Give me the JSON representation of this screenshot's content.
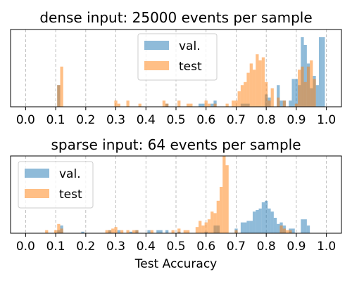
{
  "chart_data": [
    {
      "type": "histogram",
      "title": "dense input: 25000 events per sample",
      "xlabel": "",
      "ylabel": "",
      "xlim": [
        -0.05,
        1.05
      ],
      "ylim": [
        0,
        1.0
      ],
      "xticks": [
        "0.0",
        "0.1",
        "0.2",
        "0.3",
        "0.4",
        "0.5",
        "0.6",
        "0.7",
        "0.8",
        "0.9",
        "1.0"
      ],
      "grid": "x-dashed",
      "legend_position": "top-center",
      "bin_width": 0.01,
      "series": [
        {
          "name": "val.",
          "color": "#1f77b4",
          "x": [
            0.11,
            0.47,
            0.58,
            0.59,
            0.62,
            0.63,
            0.72,
            0.73,
            0.74,
            0.8,
            0.81,
            0.84,
            0.85,
            0.86,
            0.88,
            0.89,
            0.9,
            0.91,
            0.92,
            0.93,
            0.94,
            0.95,
            0.96,
            0.97,
            0.98,
            0.99
          ],
          "y": [
            0.28,
            0.04,
            0.04,
            0.04,
            0.04,
            0.08,
            0.04,
            0.04,
            0.04,
            0.16,
            0.12,
            0.28,
            0.08,
            0.08,
            0.08,
            0.36,
            0.36,
            0.28,
            0.9,
            0.8,
            0.56,
            0.24,
            0.4,
            0.28,
            0.9,
            0.9
          ]
        },
        {
          "name": "test",
          "color": "#ff7f0e",
          "x": [
            0.11,
            0.12,
            0.3,
            0.31,
            0.34,
            0.38,
            0.46,
            0.47,
            0.51,
            0.54,
            0.55,
            0.6,
            0.61,
            0.63,
            0.67,
            0.69,
            0.7,
            0.71,
            0.72,
            0.73,
            0.74,
            0.75,
            0.76,
            0.77,
            0.78,
            0.79,
            0.8,
            0.81,
            0.82,
            0.84,
            0.86,
            0.9,
            0.91,
            0.92,
            0.93,
            0.94,
            0.95,
            0.96
          ],
          "y": [
            0.28,
            0.52,
            0.08,
            0.04,
            0.08,
            0.04,
            0.08,
            0.04,
            0.08,
            0.04,
            0.04,
            0.08,
            0.04,
            0.04,
            0.04,
            0.08,
            0.08,
            0.2,
            0.28,
            0.32,
            0.44,
            0.56,
            0.48,
            0.68,
            0.6,
            0.64,
            0.32,
            0.08,
            0.24,
            0.12,
            0.08,
            0.04,
            0.48,
            0.52,
            0.32,
            0.52,
            0.6,
            0.36
          ]
        }
      ]
    },
    {
      "type": "histogram",
      "title": "sparse input: 64 events per sample",
      "xlabel": "Test Accuracy",
      "ylabel": "",
      "xlim": [
        -0.05,
        1.05
      ],
      "ylim": [
        0,
        1.0
      ],
      "xticks": [
        "0.0",
        "0.1",
        "0.2",
        "0.3",
        "0.4",
        "0.5",
        "0.6",
        "0.7",
        "0.8",
        "0.9",
        "1.0"
      ],
      "grid": "x-dashed",
      "legend_position": "upper-left",
      "bin_width": 0.01,
      "series": [
        {
          "name": "val.",
          "color": "#1f77b4",
          "x": [
            0.11,
            0.12,
            0.19,
            0.28,
            0.31,
            0.35,
            0.37,
            0.41,
            0.44,
            0.45,
            0.47,
            0.51,
            0.6,
            0.63,
            0.64,
            0.7,
            0.72,
            0.73,
            0.74,
            0.75,
            0.76,
            0.77,
            0.78,
            0.79,
            0.8,
            0.81,
            0.82,
            0.83,
            0.84,
            0.85,
            0.86,
            0.88,
            0.89,
            0.92,
            0.93,
            0.94
          ],
          "y": [
            0.04,
            0.1,
            0.02,
            0.04,
            0.04,
            0.02,
            0.04,
            0.04,
            0.04,
            0.04,
            0.04,
            0.02,
            0.02,
            0.1,
            0.1,
            0.06,
            0.14,
            0.14,
            0.16,
            0.16,
            0.28,
            0.3,
            0.32,
            0.4,
            0.42,
            0.32,
            0.28,
            0.2,
            0.12,
            0.14,
            0.1,
            0.06,
            0.06,
            0.18,
            0.18,
            0.1
          ]
        },
        {
          "name": "test",
          "color": "#ff7f0e",
          "x": [
            0.07,
            0.1,
            0.11,
            0.12,
            0.27,
            0.28,
            0.29,
            0.3,
            0.32,
            0.34,
            0.36,
            0.37,
            0.42,
            0.49,
            0.51,
            0.53,
            0.54,
            0.57,
            0.58,
            0.59,
            0.6,
            0.61,
            0.62,
            0.63,
            0.64,
            0.65,
            0.66,
            0.67,
            0.7,
            0.85,
            0.86,
            0.87,
            0.88
          ],
          "y": [
            0.04,
            0.04,
            0.12,
            0.06,
            0.04,
            0.04,
            0.06,
            0.08,
            0.04,
            0.04,
            0.04,
            0.04,
            0.04,
            0.04,
            0.06,
            0.04,
            0.04,
            0.08,
            0.16,
            0.1,
            0.14,
            0.18,
            0.28,
            0.26,
            0.42,
            0.6,
            1.0,
            0.88,
            0.04,
            0.1,
            0.06,
            0.04,
            0.04
          ]
        }
      ]
    }
  ]
}
